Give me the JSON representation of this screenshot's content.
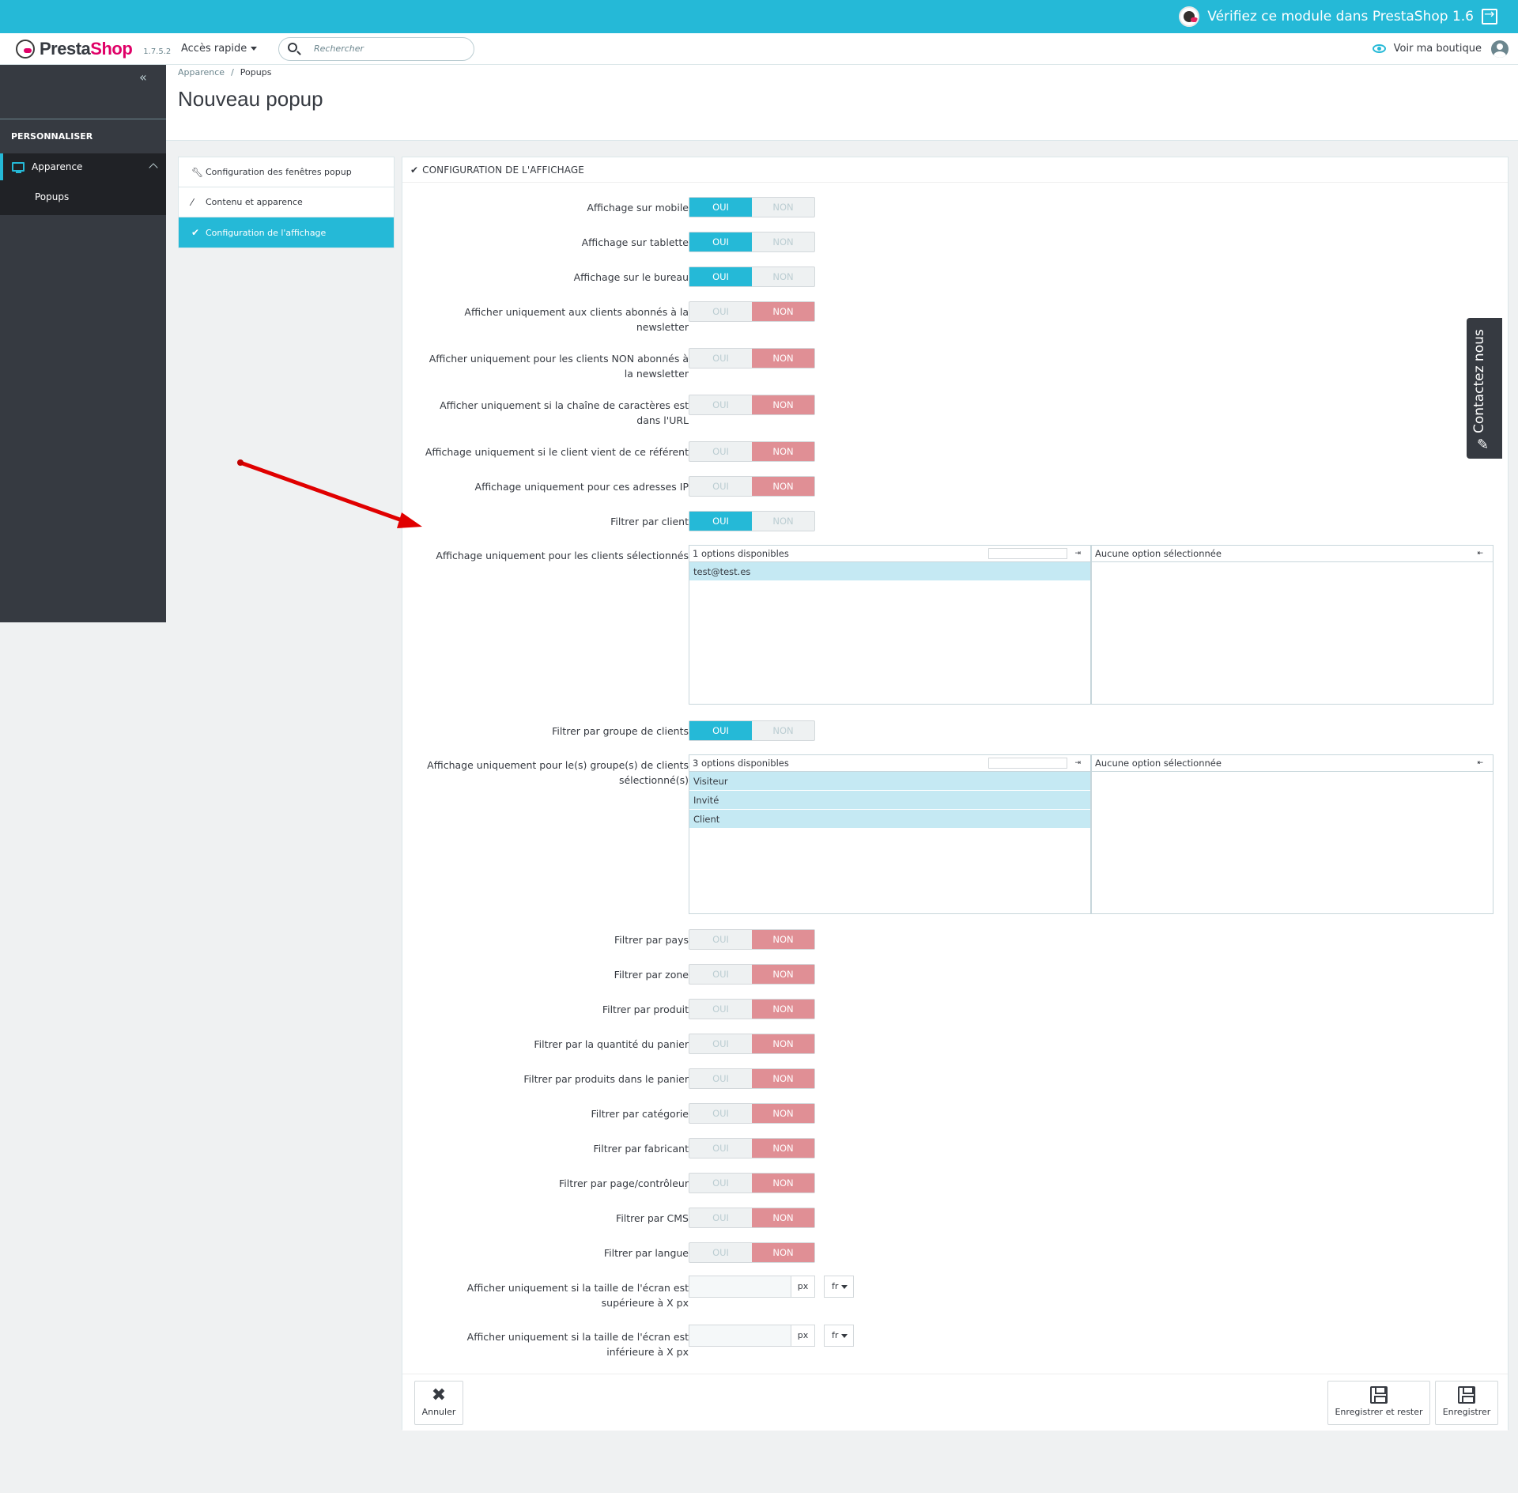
{
  "banner": {
    "text": "Vérifiez ce module dans PrestaShop 1.6"
  },
  "header": {
    "logo_presta": "Presta",
    "logo_shop": "Shop",
    "version": "1.7.5.2",
    "quick_access": "Accès rapide",
    "search_placeholder": "Rechercher",
    "view_shop": "Voir ma boutique"
  },
  "sidebar": {
    "collapse": "«",
    "section": "PERSONNALISER",
    "item": "Apparence",
    "subitem": "Popups"
  },
  "breadcrumb": {
    "parent": "Apparence",
    "separator": "/",
    "current": "Popups"
  },
  "page_title": "Nouveau popup",
  "tabs": [
    {
      "label": "Configuration des fenêtres popup",
      "icon": "wrench-icon"
    },
    {
      "label": "Contenu et apparence",
      "icon": "magic-wand-icon"
    },
    {
      "label": "Configuration de l'affichage",
      "icon": "check-icon"
    }
  ],
  "panel": {
    "title": "CONFIGURATION DE L'AFFICHAGE",
    "yes": "OUI",
    "no": "NON",
    "switches_a": [
      {
        "label": "Affichage sur mobile",
        "value": "OUI"
      },
      {
        "label": "Affichage sur tablette",
        "value": "OUI"
      },
      {
        "label": "Affichage sur le bureau",
        "value": "OUI"
      },
      {
        "label": "Afficher uniquement aux clients abonnés à la newsletter",
        "value": "NON"
      },
      {
        "label": "Afficher uniquement pour les clients NON abonnés à la newsletter",
        "value": "NON"
      },
      {
        "label": "Afficher uniquement si la chaîne de caractères est dans l'URL",
        "value": "NON"
      },
      {
        "label": "Affichage uniquement si le client vient de ce référent",
        "value": "NON"
      },
      {
        "label": "Affichage uniquement pour ces adresses IP",
        "value": "NON"
      },
      {
        "label": "Filtrer par client",
        "value": "OUI"
      }
    ],
    "customers_swap": {
      "label": "Affichage uniquement pour les clients sélectionnés",
      "available_header": "1 options disponibles",
      "selected_header": "Aucune option sélectionnée",
      "options": [
        "test@test.es"
      ]
    },
    "group_switch": {
      "label": "Filtrer par groupe de clients",
      "value": "OUI"
    },
    "groups_swap": {
      "label": "Affichage uniquement pour le(s) groupe(s) de clients sélectionné(s)",
      "available_header": "3 options disponibles",
      "selected_header": "Aucune option sélectionnée",
      "options": [
        "Visiteur",
        "Invité",
        "Client"
      ]
    },
    "switches_b": [
      {
        "label": "Filtrer par pays",
        "value": "NON"
      },
      {
        "label": "Filtrer par zone",
        "value": "NON"
      },
      {
        "label": "Filtrer par produit",
        "value": "NON"
      },
      {
        "label": "Filtrer par la quantité du panier",
        "value": "NON"
      },
      {
        "label": "Filtrer par produits dans le panier",
        "value": "NON"
      },
      {
        "label": "Filtrer par catégorie",
        "value": "NON"
      },
      {
        "label": "Filtrer par fabricant",
        "value": "NON"
      },
      {
        "label": "Filtrer par page/contrôleur",
        "value": "NON"
      },
      {
        "label": "Filtrer par CMS",
        "value": "NON"
      },
      {
        "label": "Filtrer par langue",
        "value": "NON"
      }
    ],
    "screen_min": {
      "label": "Afficher uniquement si la taille de l'écran est supérieure à X px",
      "unit": "px",
      "lang": "fr",
      "value": ""
    },
    "screen_max": {
      "label": "Afficher uniquement si la taille de l'écran est inférieure à X px",
      "unit": "px",
      "lang": "fr",
      "value": ""
    },
    "cancel": "Annuler",
    "save_stay": "Enregistrer et rester",
    "save": "Enregistrer"
  },
  "contact_tab": "Contactez nous",
  "colors": {
    "accent": "#25b9d7",
    "no_active": "#e08f95",
    "sidebar": "#363a41",
    "arrow": "#e00000"
  }
}
